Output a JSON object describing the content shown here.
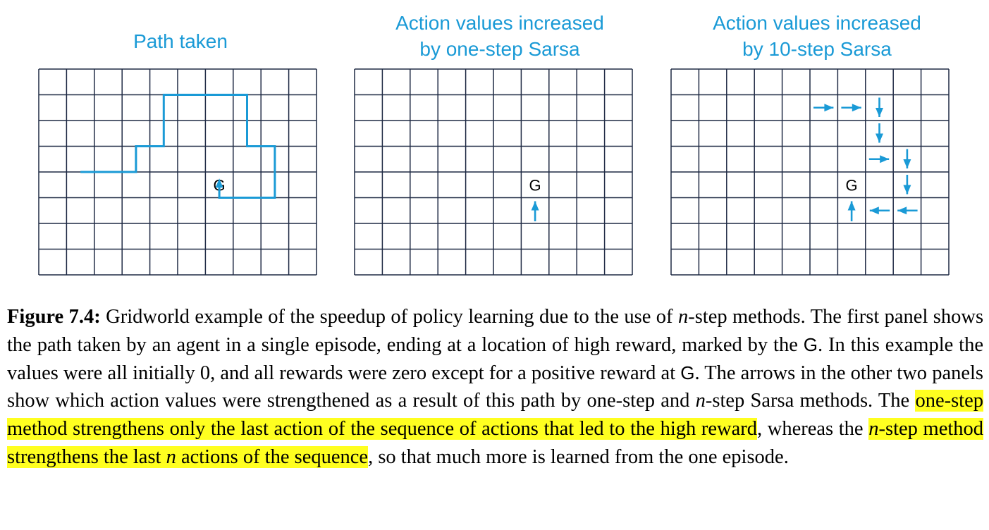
{
  "figure": {
    "panels": [
      {
        "id": "path",
        "title_lines": [
          "Path taken"
        ]
      },
      {
        "id": "onestep",
        "title_lines": [
          "Action values increased",
          "by one-step Sarsa"
        ]
      },
      {
        "id": "tenstep",
        "title_lines": [
          "Action values increased",
          "by 10-step Sarsa"
        ]
      }
    ],
    "goal_label": "G",
    "grid": {
      "cols": 10,
      "rows": 8,
      "goal_cell": [
        6,
        4
      ]
    },
    "colors": {
      "accent": "#1a9ad6",
      "grid": "#1f2a44"
    },
    "path_cells": [
      [
        1.5,
        4
      ],
      [
        3.5,
        4
      ],
      [
        3.5,
        3
      ],
      [
        4.5,
        3
      ],
      [
        4.5,
        1
      ],
      [
        7.5,
        1
      ],
      [
        7.5,
        3
      ],
      [
        8.5,
        3
      ],
      [
        8.5,
        5
      ],
      [
        6.5,
        5
      ],
      [
        6.5,
        4.5
      ]
    ],
    "onestep_arrows": [
      {
        "cell": [
          6,
          5
        ],
        "dir": "up"
      }
    ],
    "tenstep_arrows": [
      {
        "cell": [
          5,
          1
        ],
        "dir": "right"
      },
      {
        "cell": [
          6,
          1
        ],
        "dir": "right"
      },
      {
        "cell": [
          7,
          1
        ],
        "dir": "down"
      },
      {
        "cell": [
          7,
          2
        ],
        "dir": "down"
      },
      {
        "cell": [
          7,
          3
        ],
        "dir": "right"
      },
      {
        "cell": [
          8,
          3
        ],
        "dir": "down"
      },
      {
        "cell": [
          8,
          4
        ],
        "dir": "down"
      },
      {
        "cell": [
          8,
          5
        ],
        "dir": "left"
      },
      {
        "cell": [
          7,
          5
        ],
        "dir": "left"
      },
      {
        "cell": [
          6,
          5
        ],
        "dir": "up"
      }
    ]
  },
  "caption": {
    "label": "Figure 7.4:",
    "s1": "Gridworld example of the speedup of policy learning due to the use of",
    "n": "n",
    "s2": "-step methods. The first panel shows the path taken by an agent in a single episode, ending at a location of high reward, marked by the",
    "g": "G",
    "s3": ". In this example the values were all initially 0, and all rewards were zero except for a positive reward at",
    "s4": ". The arrows in the other two panels show which action values were strengthened as a result of this path by one-step and",
    "s5": "-step Sarsa methods. The",
    "hl1": "one-step method strengthens only the last action of the sequence of actions that led to the high reward",
    "s6": ", whereas the",
    "hl2b": "-step method strengthens the last",
    "hl2d": "actions of the sequence",
    "s7": ", so that much more is learned from the one episode."
  }
}
